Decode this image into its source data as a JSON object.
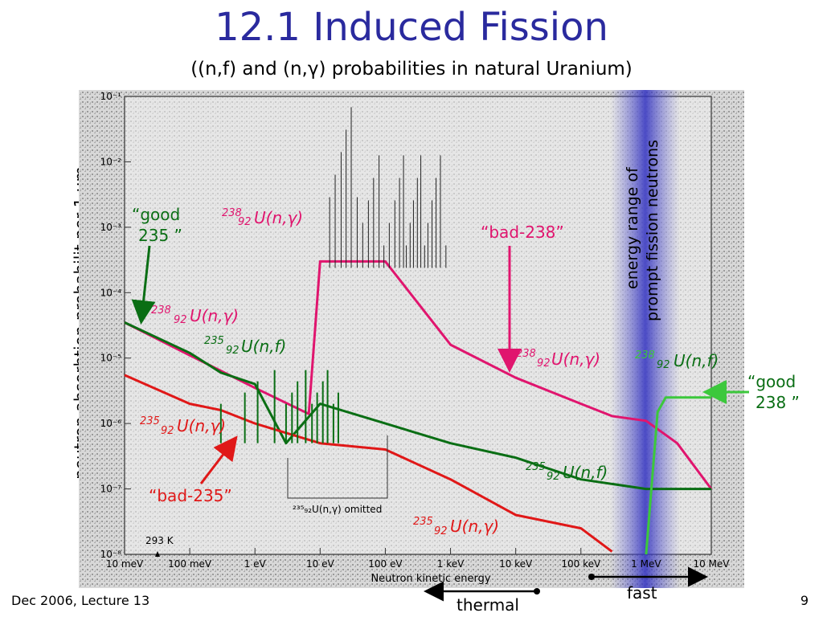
{
  "slide": {
    "title": "12.1 Induced Fission",
    "subtitle": "((n,f) and (n,γ) probabilities in natural Uranium)",
    "footer_left": "Dec 2006, Lecture 13",
    "page_number": "9"
  },
  "chart_data": {
    "type": "line",
    "ylabel": "neutron absorbtion probabilit per 1 μm",
    "xlabel": "Neutron kinetic energy",
    "x_scale": "log",
    "y_scale": "log",
    "xlim_eV": [
      0.01,
      10000000
    ],
    "ylim": [
      1e-08,
      0.1
    ],
    "x_ticks": [
      "10 meV",
      "100 meV",
      "1 eV",
      "10 eV",
      "100 eV",
      "1 keV",
      "10 keV",
      "100 keV",
      "1 MeV",
      "10 MeV"
    ],
    "y_ticks": [
      "10⁻⁸",
      "10⁻⁷",
      "10⁻⁶",
      "10⁻⁵",
      "10⁻⁴",
      "10⁻³",
      "10⁻²",
      "10⁻¹"
    ],
    "temperature_marker": "293 K",
    "omitted_note": "²³⁵₉₂U(n,γ) omitted",
    "highlight_band_label": [
      "energy range of",
      "prompt fission neutrons"
    ],
    "series": [
      {
        "name": "U238 (n,γ)",
        "color": "#e0156e",
        "x_eV": [
          0.01,
          0.1,
          1,
          6.7,
          10,
          100,
          1000,
          10000,
          100000,
          300000,
          1000000,
          3000000,
          10000000
        ],
        "y": [
          3.5e-05,
          1.1e-05,
          3.5e-06,
          1.4e-06,
          0.0003,
          0.0003,
          1.6e-05,
          5e-06,
          2e-06,
          1.3e-06,
          1.1e-06,
          5e-07,
          1e-07
        ]
      },
      {
        "name": "U235 (n,f)",
        "color": "#0a6e14",
        "x_eV": [
          0.01,
          0.1,
          0.3,
          1,
          3,
          10,
          100,
          1000,
          10000,
          100000,
          1000000,
          10000000
        ],
        "y": [
          3.5e-05,
          1.2e-05,
          6e-06,
          4e-06,
          5e-07,
          2e-06,
          1e-06,
          5e-07,
          3e-07,
          1.4e-07,
          1e-07,
          1e-07
        ]
      },
      {
        "name": "U235 (n,γ)",
        "color": "#e01818",
        "x_eV": [
          0.01,
          0.1,
          0.3,
          1,
          10,
          100,
          1000,
          10000,
          100000,
          300000
        ],
        "y": [
          5.5e-06,
          2e-06,
          1.6e-06,
          1e-06,
          5e-07,
          4e-07,
          1.4e-07,
          4e-08,
          2.5e-08,
          1.1e-08
        ]
      },
      {
        "name": "U238 (n,f)",
        "color": "#3cc83c",
        "x_eV": [
          1000000,
          1500000,
          2000000,
          10000000
        ],
        "y": [
          1e-08,
          1.5e-06,
          2.5e-06,
          2.5e-06
        ]
      }
    ],
    "annotations": [
      {
        "text": "“good 235 ”",
        "color": "#0a6e14"
      },
      {
        "text": "“bad-235”",
        "color": "#e01818"
      },
      {
        "text": "“bad-238”",
        "color": "#e0156e"
      },
      {
        "text": "“good 238 ”",
        "color": "#0a6e14"
      }
    ],
    "curve_labels": [
      {
        "mass": "238",
        "z": "92",
        "reaction": "U(n,γ)",
        "color": "#e0156e"
      },
      {
        "mass": "238",
        "z": "92",
        "reaction": "U(n,γ)",
        "color": "#e0156e"
      },
      {
        "mass": "235",
        "z": "92",
        "reaction": "U(n,f)",
        "color": "#0a6e14"
      },
      {
        "mass": "235",
        "z": "92",
        "reaction": "U(n,γ)",
        "color": "#e01818"
      },
      {
        "mass": "238",
        "z": "92",
        "reaction": "U(n,γ)",
        "color": "#e0156e"
      },
      {
        "mass": "238",
        "z": "92",
        "reaction": "U(n,f)",
        "color": "#0a6e14"
      },
      {
        "mass": "235",
        "z": "92",
        "reaction": "U(n,f)",
        "color": "#0a6e14"
      },
      {
        "mass": "235",
        "z": "92",
        "reaction": "U(n,γ)",
        "color": "#e01818"
      }
    ],
    "range_markers": [
      {
        "text": "fast"
      },
      {
        "text": "thermal"
      }
    ]
  }
}
